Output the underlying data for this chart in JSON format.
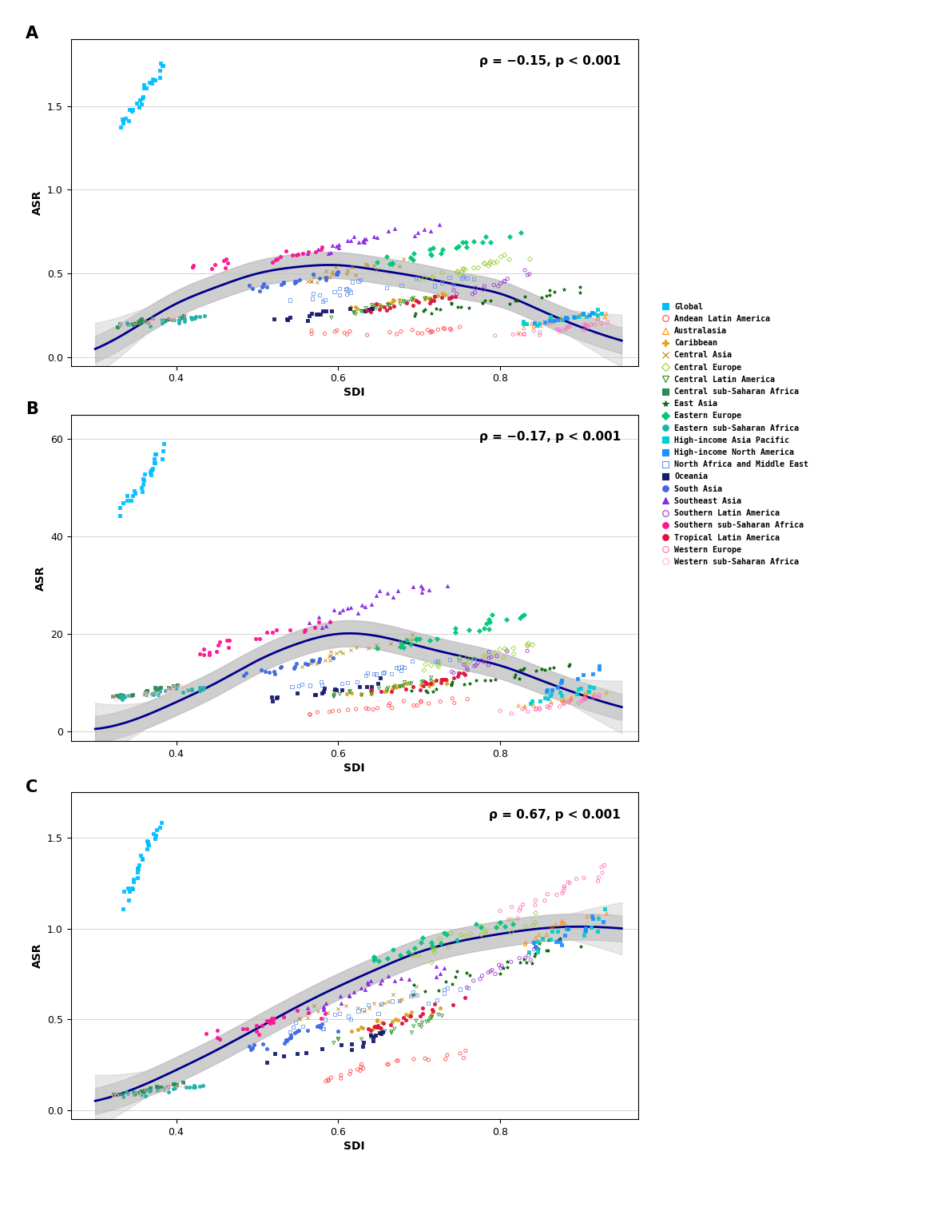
{
  "regions": [
    {
      "name": "Global",
      "color": "#00BFFF",
      "marker": "s",
      "mfc": "#00BFFF"
    },
    {
      "name": "Andean Latin America",
      "color": "#FF4444",
      "marker": "o",
      "mfc": "none"
    },
    {
      "name": "Australasia",
      "color": "#FF8C00",
      "marker": "^",
      "mfc": "none"
    },
    {
      "name": "Caribbean",
      "color": "#DAA520",
      "marker": "P",
      "mfc": "#DAA520"
    },
    {
      "name": "Central Asia",
      "color": "#B8860B",
      "marker": "x",
      "mfc": "#B8860B"
    },
    {
      "name": "Central Europe",
      "color": "#9ACD32",
      "marker": "D",
      "mfc": "none"
    },
    {
      "name": "Central Latin America",
      "color": "#228B22",
      "marker": "v",
      "mfc": "none"
    },
    {
      "name": "Central sub-Saharan Africa",
      "color": "#2E8B57",
      "marker": "s",
      "mfc": "#2E8B57"
    },
    {
      "name": "East Asia",
      "color": "#006400",
      "marker": "*",
      "mfc": "#006400"
    },
    {
      "name": "Eastern Europe",
      "color": "#00C878",
      "marker": "D",
      "mfc": "#00C878"
    },
    {
      "name": "Eastern sub-Saharan Africa",
      "color": "#20B2AA",
      "marker": "o",
      "mfc": "#20B2AA"
    },
    {
      "name": "High-income Asia Pacific",
      "color": "#00CED1",
      "marker": "s",
      "mfc": "#00CED1"
    },
    {
      "name": "High-income North America",
      "color": "#1E90FF",
      "marker": "s",
      "mfc": "#1E90FF"
    },
    {
      "name": "North Africa and Middle East",
      "color": "#6495ED",
      "marker": "s",
      "mfc": "none"
    },
    {
      "name": "Oceania",
      "color": "#191970",
      "marker": "s",
      "mfc": "#191970"
    },
    {
      "name": "South Asia",
      "color": "#4169E1",
      "marker": "o",
      "mfc": "#4169E1"
    },
    {
      "name": "Southeast Asia",
      "color": "#8A2BE2",
      "marker": "^",
      "mfc": "#8A2BE2"
    },
    {
      "name": "Southern Latin America",
      "color": "#9932CC",
      "marker": "o",
      "mfc": "none"
    },
    {
      "name": "Southern sub-Saharan Africa",
      "color": "#FF1493",
      "marker": "o",
      "mfc": "#FF1493"
    },
    {
      "name": "Tropical Latin America",
      "color": "#DC143C",
      "marker": "o",
      "mfc": "#DC143C"
    },
    {
      "name": "Western Europe",
      "color": "#FF69B4",
      "marker": "o",
      "mfc": "none"
    },
    {
      "name": "Western sub-Saharan Africa",
      "color": "#FFB6C1",
      "marker": "o",
      "mfc": "none"
    }
  ],
  "panel_A": {
    "ylabel": "ASR",
    "xlabel": "SDI",
    "rho": "ρ = −0.15, p < 0.001",
    "ylim": [
      -0.05,
      1.9
    ],
    "yticks": [
      0.0,
      0.5,
      1.0,
      1.5
    ],
    "curve_knots": [
      [
        0.3,
        0.05
      ],
      [
        0.35,
        0.18
      ],
      [
        0.4,
        0.32
      ],
      [
        0.45,
        0.42
      ],
      [
        0.5,
        0.5
      ],
      [
        0.55,
        0.54
      ],
      [
        0.6,
        0.55
      ],
      [
        0.65,
        0.52
      ],
      [
        0.7,
        0.48
      ],
      [
        0.75,
        0.43
      ],
      [
        0.8,
        0.38
      ],
      [
        0.85,
        0.28
      ],
      [
        0.9,
        0.18
      ],
      [
        0.95,
        0.1
      ]
    ]
  },
  "panel_B": {
    "ylabel": "ASR",
    "xlabel": "SDI",
    "rho": "ρ = −0.17, p < 0.001",
    "ylim": [
      -2,
      65
    ],
    "yticks": [
      0,
      20,
      40,
      60
    ],
    "curve_knots": [
      [
        0.3,
        0.5
      ],
      [
        0.35,
        2.5
      ],
      [
        0.4,
        6.0
      ],
      [
        0.45,
        10.0
      ],
      [
        0.5,
        14.5
      ],
      [
        0.55,
        18.0
      ],
      [
        0.6,
        20.0
      ],
      [
        0.65,
        19.5
      ],
      [
        0.7,
        17.5
      ],
      [
        0.75,
        15.5
      ],
      [
        0.8,
        13.5
      ],
      [
        0.85,
        10.5
      ],
      [
        0.9,
        7.5
      ],
      [
        0.95,
        5.0
      ]
    ]
  },
  "panel_C": {
    "ylabel": "ASR",
    "xlabel": "SDI",
    "rho": "ρ = 0.67, p < 0.001",
    "ylim": [
      -0.05,
      1.75
    ],
    "yticks": [
      0.0,
      0.5,
      1.0,
      1.5
    ],
    "curve_knots": [
      [
        0.3,
        0.05
      ],
      [
        0.35,
        0.12
      ],
      [
        0.4,
        0.22
      ],
      [
        0.45,
        0.33
      ],
      [
        0.5,
        0.45
      ],
      [
        0.55,
        0.57
      ],
      [
        0.6,
        0.68
      ],
      [
        0.65,
        0.78
      ],
      [
        0.7,
        0.87
      ],
      [
        0.75,
        0.93
      ],
      [
        0.8,
        0.97
      ],
      [
        0.85,
        1.0
      ],
      [
        0.9,
        1.01
      ],
      [
        0.95,
        1.0
      ]
    ]
  },
  "figure_bg": "#FFFFFF",
  "curve_color": "#00008B",
  "ci_color": "#BBBBBB",
  "xlim": [
    0.27,
    0.97
  ],
  "xticks": [
    0.4,
    0.6,
    0.8
  ]
}
